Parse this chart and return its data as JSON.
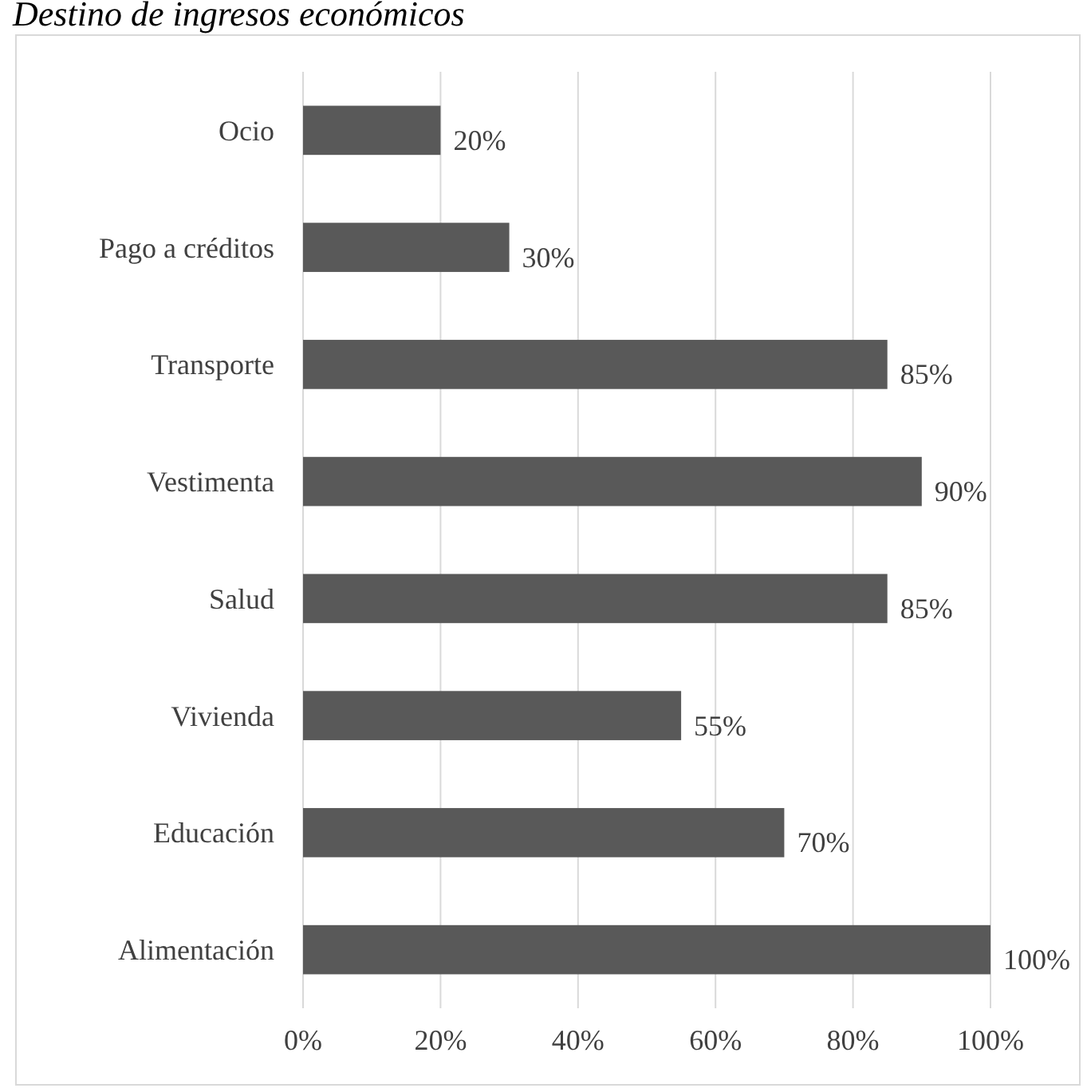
{
  "chart_data": {
    "type": "bar",
    "orientation": "horizontal",
    "title": "Destino de ingresos económicos",
    "categories": [
      "Ocio",
      "Pago a créditos",
      "Transporte",
      "Vestimenta",
      "Salud",
      "Vivienda",
      "Educación",
      "Alimentación"
    ],
    "values": [
      20,
      30,
      85,
      90,
      85,
      55,
      70,
      100
    ],
    "value_labels": [
      "20%",
      "30%",
      "85%",
      "90%",
      "85%",
      "55%",
      "70%",
      "100%"
    ],
    "color": "#595959",
    "xlim": [
      0,
      100
    ],
    "xticks": [
      {
        "value": 0,
        "label": "0%"
      },
      {
        "value": 20,
        "label": "20%"
      },
      {
        "value": 40,
        "label": "40%"
      },
      {
        "value": 60,
        "label": "60%"
      },
      {
        "value": 80,
        "label": "80%"
      },
      {
        "value": 100,
        "label": "100%"
      }
    ],
    "grid": "x"
  }
}
